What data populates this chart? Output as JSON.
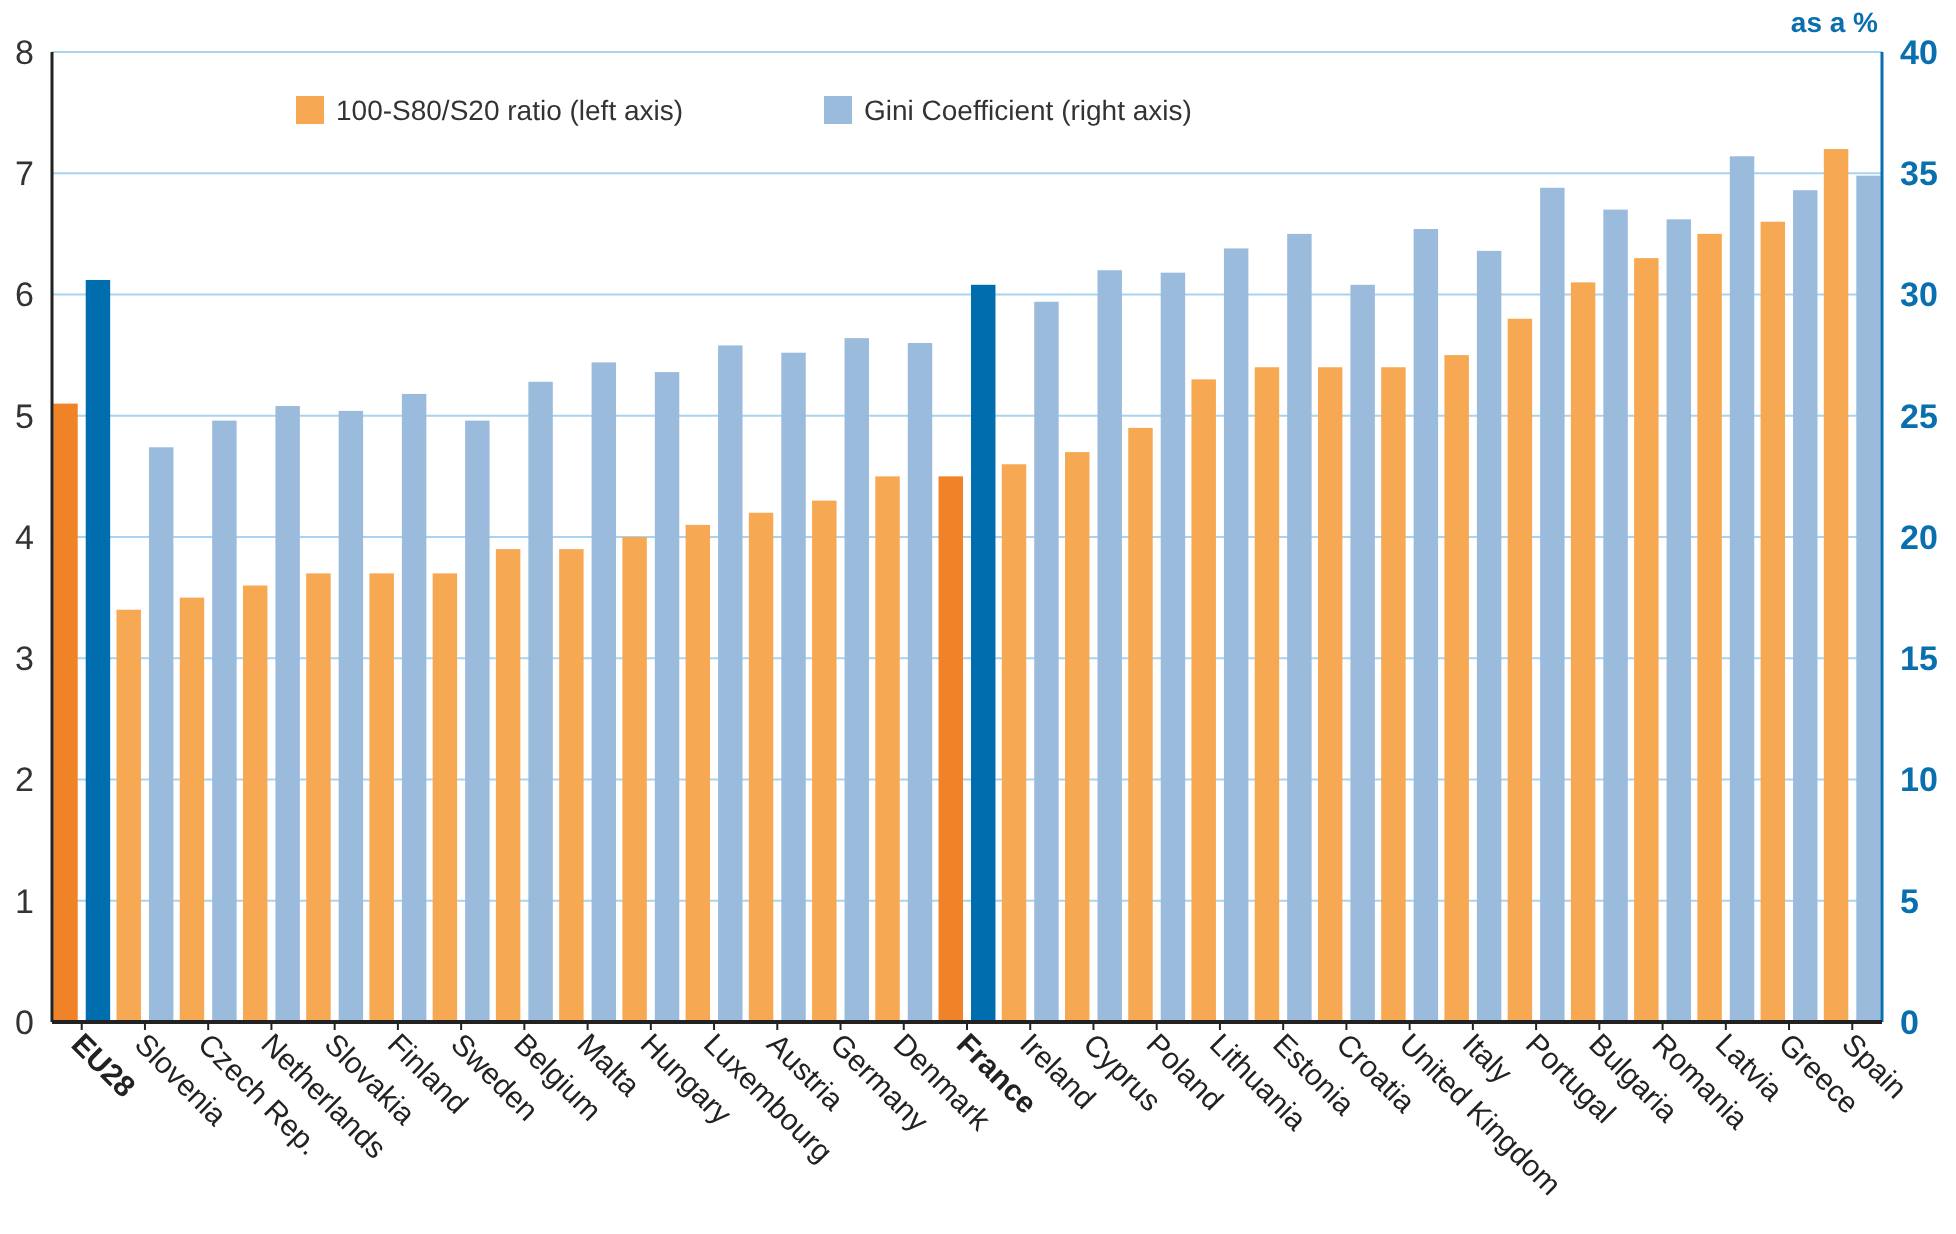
{
  "chart_data": {
    "type": "bar",
    "categories": [
      "EU28",
      "Slovenia",
      "Czech Rep.",
      "Netherlands",
      "Slovakia",
      "Finland",
      "Sweden",
      "Belgium",
      "Malta",
      "Hungary",
      "Luxembourg",
      "Austria",
      "Germany",
      "Denmark",
      "France",
      "Ireland",
      "Cyprus",
      "Poland",
      "Lithuania",
      "Estonia",
      "Croatia",
      "United Kingdom",
      "Italy",
      "Portugal",
      "Bulgaria",
      "Romania",
      "Latvia",
      "Greece",
      "Spain"
    ],
    "series": [
      {
        "name": "100-S80/S20 ratio (left axis)",
        "color": "#f7a852",
        "colors": [
          "#f08228",
          "#f7a852",
          "#f7a852",
          "#f7a852",
          "#f7a852",
          "#f7a852",
          "#f7a852",
          "#f7a852",
          "#f7a852",
          "#f7a852",
          "#f7a852",
          "#f7a852",
          "#f7a852",
          "#f7a852",
          "#f08228",
          "#f7a852",
          "#f7a852",
          "#f7a852",
          "#f7a852",
          "#f7a852",
          "#f7a852",
          "#f7a852",
          "#f7a852",
          "#f7a852",
          "#f7a852",
          "#f7a852",
          "#f7a852",
          "#f7a852",
          "#f7a852"
        ],
        "values": [
          5.1,
          3.4,
          3.5,
          3.6,
          3.7,
          3.7,
          3.7,
          3.9,
          3.9,
          4.0,
          4.1,
          4.2,
          4.3,
          4.5,
          4.5,
          4.6,
          4.7,
          4.9,
          5.3,
          5.4,
          5.4,
          5.4,
          5.5,
          5.8,
          6.1,
          6.3,
          6.5,
          6.6,
          7.2
        ]
      },
      {
        "name": "Gini Coefficient (right axis)",
        "color": "#9bbbdd",
        "axis": "y2",
        "colors": [
          "#006eae",
          "#9bbbdd",
          "#9bbbdd",
          "#9bbbdd",
          "#9bbbdd",
          "#9bbbdd",
          "#9bbbdd",
          "#9bbbdd",
          "#9bbbdd",
          "#9bbbdd",
          "#9bbbdd",
          "#9bbbdd",
          "#9bbbdd",
          "#9bbbdd",
          "#006eae",
          "#9bbbdd",
          "#9bbbdd",
          "#9bbbdd",
          "#9bbbdd",
          "#9bbbdd",
          "#9bbbdd",
          "#9bbbdd",
          "#9bbbdd",
          "#9bbbdd",
          "#9bbbdd",
          "#9bbbdd",
          "#9bbbdd",
          "#9bbbdd",
          "#9bbbdd"
        ],
        "values": [
          30.6,
          23.7,
          24.8,
          25.4,
          25.2,
          25.9,
          24.8,
          26.4,
          27.2,
          26.8,
          27.9,
          27.6,
          28.2,
          28.0,
          30.4,
          29.7,
          31.0,
          30.9,
          31.9,
          32.5,
          30.4,
          32.7,
          31.8,
          34.4,
          33.5,
          33.1,
          35.7,
          34.3,
          34.9
        ]
      }
    ],
    "ylim": [
      0,
      8
    ],
    "yticks": [
      0,
      1,
      2,
      3,
      4,
      5,
      6,
      7,
      8
    ],
    "y2lim": [
      0,
      40
    ],
    "y2ticks": [
      0,
      5,
      10,
      15,
      20,
      25,
      30,
      35,
      40
    ],
    "y2label": "as a %",
    "grid": "y",
    "legend": "top"
  }
}
